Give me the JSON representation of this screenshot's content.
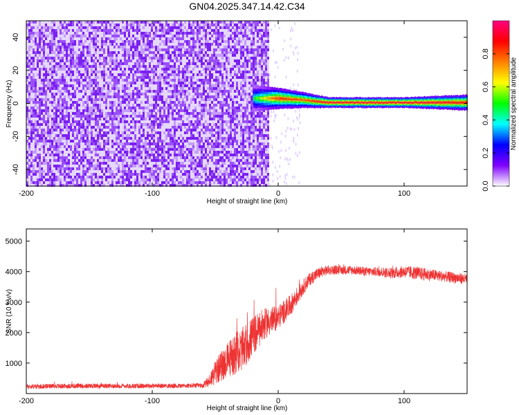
{
  "title": "GN04.2025.347.14.42.C34",
  "chart_data": [
    {
      "type": "heatmap",
      "title": "GN04.2025.347.14.42.C34",
      "xlabel": "Height of straight line (km)",
      "ylabel": "Frequency (Hz)",
      "xlim": [
        -200,
        150
      ],
      "ylim": [
        -50,
        50
      ],
      "xticks": [
        -200,
        -100,
        0,
        100
      ],
      "yticks": [
        -40,
        -20,
        0,
        20,
        40
      ],
      "colorbar": {
        "label": "Normalized spectral amplitude",
        "range": [
          0.0,
          1.0
        ],
        "ticks": [
          0.0,
          0.2,
          0.4,
          0.6,
          0.8
        ],
        "colormap": [
          "#ffffff",
          "#8000ff",
          "#0000ff",
          "#00ffff",
          "#00ff00",
          "#ffff00",
          "#ff8000",
          "#ff0000",
          "#ff0080"
        ]
      },
      "noise_region": {
        "x_range": [
          -200,
          -8
        ],
        "freq_range": [
          -50,
          50
        ],
        "amplitude": [
          0.0,
          0.15
        ]
      },
      "signal_band": [
        {
          "x": -20,
          "freq_center": 3,
          "freq_halfwidth": 5,
          "amplitude": 0.5
        },
        {
          "x": 0,
          "freq_center": 3,
          "freq_halfwidth": 4,
          "amplitude": 0.9
        },
        {
          "x": 20,
          "freq_center": 2,
          "freq_halfwidth": 3,
          "amplitude": 0.85
        },
        {
          "x": 40,
          "freq_center": 0.5,
          "freq_halfwidth": 2,
          "amplitude": 1.0
        },
        {
          "x": 100,
          "freq_center": 0.5,
          "freq_halfwidth": 2,
          "amplitude": 1.0
        },
        {
          "x": 150,
          "freq_center": 0.5,
          "freq_halfwidth": 3,
          "amplitude": 0.95
        }
      ]
    },
    {
      "type": "line",
      "xlabel": "Height of straight line (km)",
      "ylabel": "SNR (10 * v/v)",
      "xlim": [
        -200,
        150
      ],
      "ylim": [
        0,
        5400
      ],
      "xticks": [
        -200,
        -100,
        0,
        100
      ],
      "yticks": [
        1000,
        2000,
        3000,
        4000,
        5000
      ],
      "series": [
        {
          "name": "SNR",
          "color": "#ee3333",
          "x": [
            -200,
            -180,
            -160,
            -140,
            -120,
            -100,
            -80,
            -60,
            -55,
            -50,
            -45,
            -40,
            -35,
            -30,
            -25,
            -20,
            -15,
            -10,
            -5,
            0,
            5,
            10,
            15,
            20,
            25,
            30,
            35,
            40,
            50,
            60,
            70,
            80,
            90,
            100,
            110,
            120,
            130,
            140,
            150
          ],
          "y": [
            230,
            240,
            250,
            250,
            250,
            250,
            250,
            260,
            400,
            700,
            900,
            1100,
            1300,
            1400,
            1600,
            1900,
            2100,
            2300,
            2400,
            2500,
            2700,
            2900,
            3200,
            3500,
            3750,
            3900,
            4000,
            4050,
            4050,
            4050,
            4000,
            4000,
            3950,
            4000,
            3950,
            3900,
            3850,
            3800,
            3750
          ],
          "noise_amplitude": [
            80,
            80,
            80,
            80,
            80,
            80,
            80,
            80,
            200,
            400,
            500,
            600,
            700,
            700,
            700,
            650,
            600,
            500,
            450,
            400,
            380,
            350,
            300,
            250,
            220,
            200,
            180,
            160,
            150,
            150,
            150,
            160,
            180,
            200,
            220,
            200,
            180,
            180,
            180
          ]
        }
      ]
    }
  ]
}
